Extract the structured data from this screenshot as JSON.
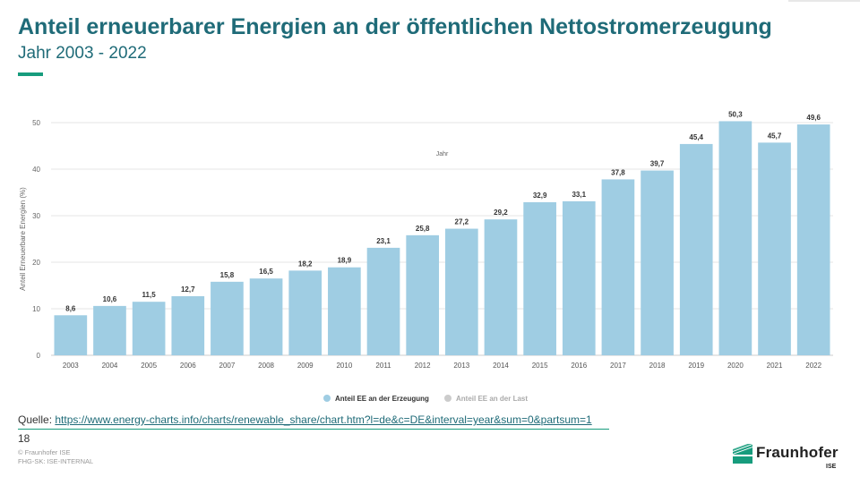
{
  "header": {
    "title": "Anteil erneuerbarer Energien an der öffentlichen Nettostromerzeugung",
    "subtitle": "Jahr 2003 - 2022"
  },
  "footer": {
    "source_label": "Quelle:",
    "source_url": "https://www.energy-charts.info/charts/renewable_share/chart.htm?l=de&c=DE&interval=year&sum=0&partsum=1",
    "page_number": "18",
    "copyright_line1": "© Fraunhofer ISE",
    "copyright_line2": "FHG-SK: ISE-INTERNAL",
    "logo_text": "Fraunhofer",
    "logo_sub": "ISE"
  },
  "colors": {
    "title": "#1f6b78",
    "accent": "#179c7d",
    "bar": "#9fcde3",
    "legend_inactive": "#cccccc"
  },
  "chart_data": {
    "type": "bar",
    "xlabel": "Jahr",
    "ylabel": "Anteil Erneuerbare Energien (%)",
    "ylim": [
      0,
      50
    ],
    "yticks": [
      0,
      10,
      20,
      30,
      40,
      50
    ],
    "grid": true,
    "legend_position": "bottom",
    "categories": [
      "2003",
      "2004",
      "2005",
      "2006",
      "2007",
      "2008",
      "2009",
      "2010",
      "2011",
      "2012",
      "2013",
      "2014",
      "2015",
      "2016",
      "2017",
      "2018",
      "2019",
      "2020",
      "2021",
      "2022"
    ],
    "series": [
      {
        "name": "Anteil EE an der Erzeugung",
        "values": [
          8.6,
          10.6,
          11.5,
          12.7,
          15.8,
          16.5,
          18.2,
          18.9,
          23.1,
          25.8,
          27.2,
          29.2,
          32.9,
          33.1,
          37.8,
          39.7,
          45.4,
          50.3,
          45.7,
          49.6
        ],
        "labels": [
          "8,6",
          "10,6",
          "11,5",
          "12,7",
          "15,8",
          "16,5",
          "18,2",
          "18,9",
          "23,1",
          "25,8",
          "27,2",
          "29,2",
          "32,9",
          "33,1",
          "37,8",
          "39,7",
          "45,4",
          "50,3",
          "45,7",
          "49,6"
        ],
        "visible": true
      },
      {
        "name": "Anteil EE an der Last",
        "visible": false
      }
    ]
  }
}
